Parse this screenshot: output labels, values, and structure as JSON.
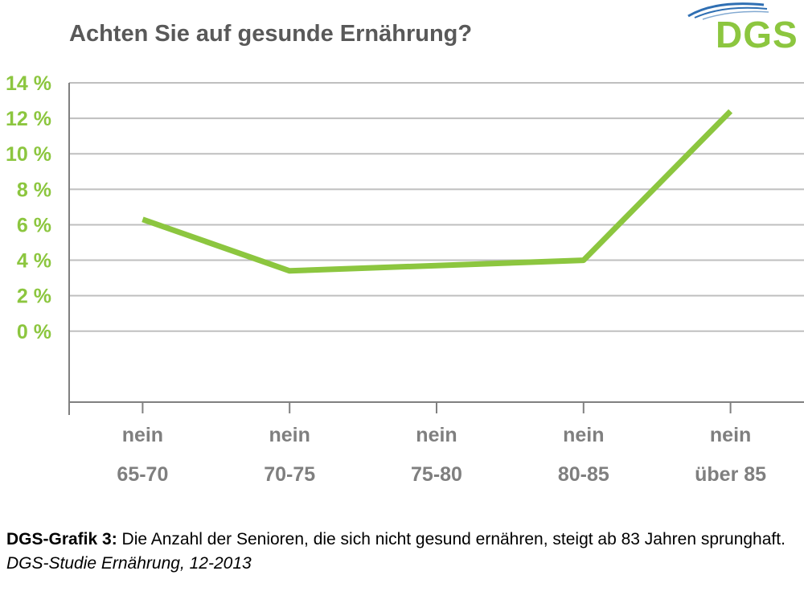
{
  "logo": {
    "text": "DGS",
    "color": "#8cc63f",
    "swoosh_color": "#2f6fb3"
  },
  "caption": {
    "lead": "DGS-Grafik 3:",
    "text": "Die Anzahl der Senioren, die sich nicht gesund ernähren, steigt ab 83 Jahren sprunghaft.",
    "source": "DGS-Studie Ernährung, 12-2013"
  },
  "chart_data": {
    "type": "line",
    "title": "Achten Sie auf gesunde Ernährung?",
    "xlabel": "",
    "ylabel": "",
    "categories": [
      [
        "nein",
        "65-70"
      ],
      [
        "nein",
        "70-75"
      ],
      [
        "nein",
        "75-80"
      ],
      [
        "nein",
        "80-85"
      ],
      [
        "nein",
        "über 85"
      ]
    ],
    "series": [
      {
        "values": [
          6.3,
          3.4,
          3.7,
          4.0,
          12.4
        ],
        "color": "#8cc63f"
      }
    ],
    "ylim": [
      -4,
      14
    ],
    "yticks": [
      0,
      2,
      4,
      6,
      8,
      10,
      12,
      14
    ],
    "ytick_labels": [
      "0 %",
      "2 %",
      "4 %",
      "6 %",
      "8 %",
      "10 %",
      "12 %",
      "14 %"
    ],
    "tick_label_color": "#8cc63f",
    "category_label_color": "#7f7f7f",
    "grid": true,
    "grid_color": "#bfbfbf",
    "axis_color": "#808080",
    "legend": "none"
  }
}
